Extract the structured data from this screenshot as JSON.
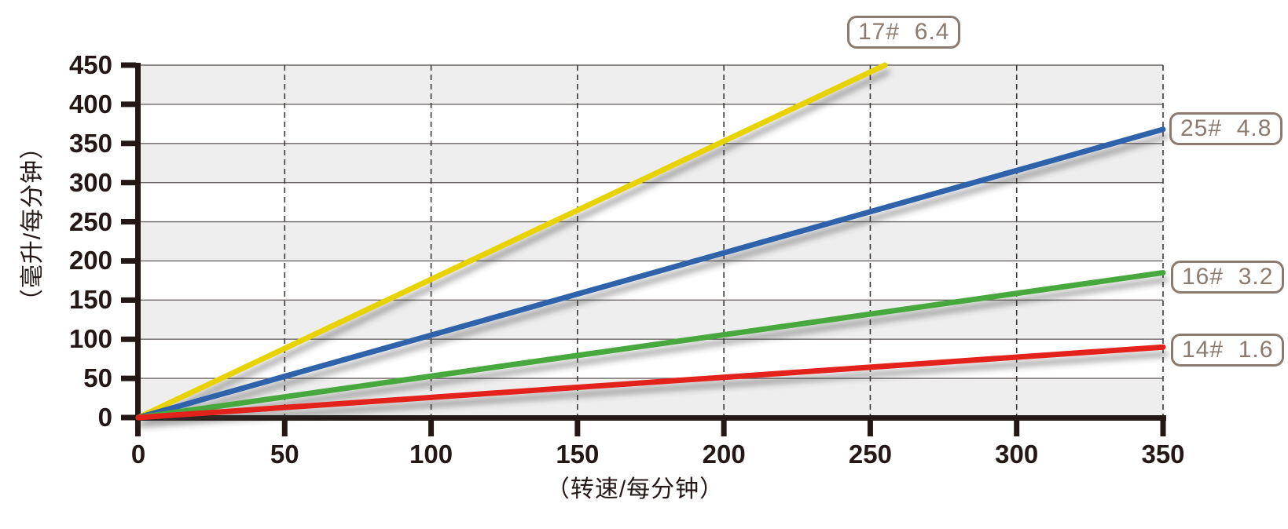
{
  "chart_data": {
    "type": "line",
    "title": "",
    "xlabel": "（转速/每分钟）",
    "ylabel": "（毫升/每分钟）",
    "xlim": [
      0,
      350
    ],
    "ylim": [
      0,
      450
    ],
    "x_ticks": [
      0,
      50,
      100,
      150,
      200,
      250,
      300,
      350
    ],
    "y_ticks": [
      0,
      50,
      100,
      150,
      200,
      250,
      300,
      350,
      400,
      450
    ],
    "grid": {
      "horizontal": "solid",
      "vertical": "dashed",
      "background_bands": "alternating gray/white every 50 units, gray band at 0-50 through 400-450"
    },
    "legend_position": "boxed labels at the end of each line",
    "series": [
      {
        "name": "17#  6.4",
        "color": "#e8d200",
        "points": [
          [
            0,
            0
          ],
          [
            255,
            450
          ]
        ]
      },
      {
        "name": "25#  4.8",
        "color": "#2d63ac",
        "points": [
          [
            0,
            0
          ],
          [
            350,
            368
          ]
        ]
      },
      {
        "name": "16#  3.2",
        "color": "#46a83c",
        "points": [
          [
            0,
            0
          ],
          [
            350,
            185
          ]
        ]
      },
      {
        "name": "14#  1.6",
        "color": "#e3201e",
        "points": [
          [
            0,
            0
          ],
          [
            350,
            90
          ]
        ]
      }
    ],
    "colors": {
      "band": "#eeeeee",
      "axis": "#231815",
      "gridline": "#6b6664",
      "dashed_gridline": "#3d3a38",
      "tick_text": "#231815",
      "label_box": "#8b7a6f"
    }
  }
}
